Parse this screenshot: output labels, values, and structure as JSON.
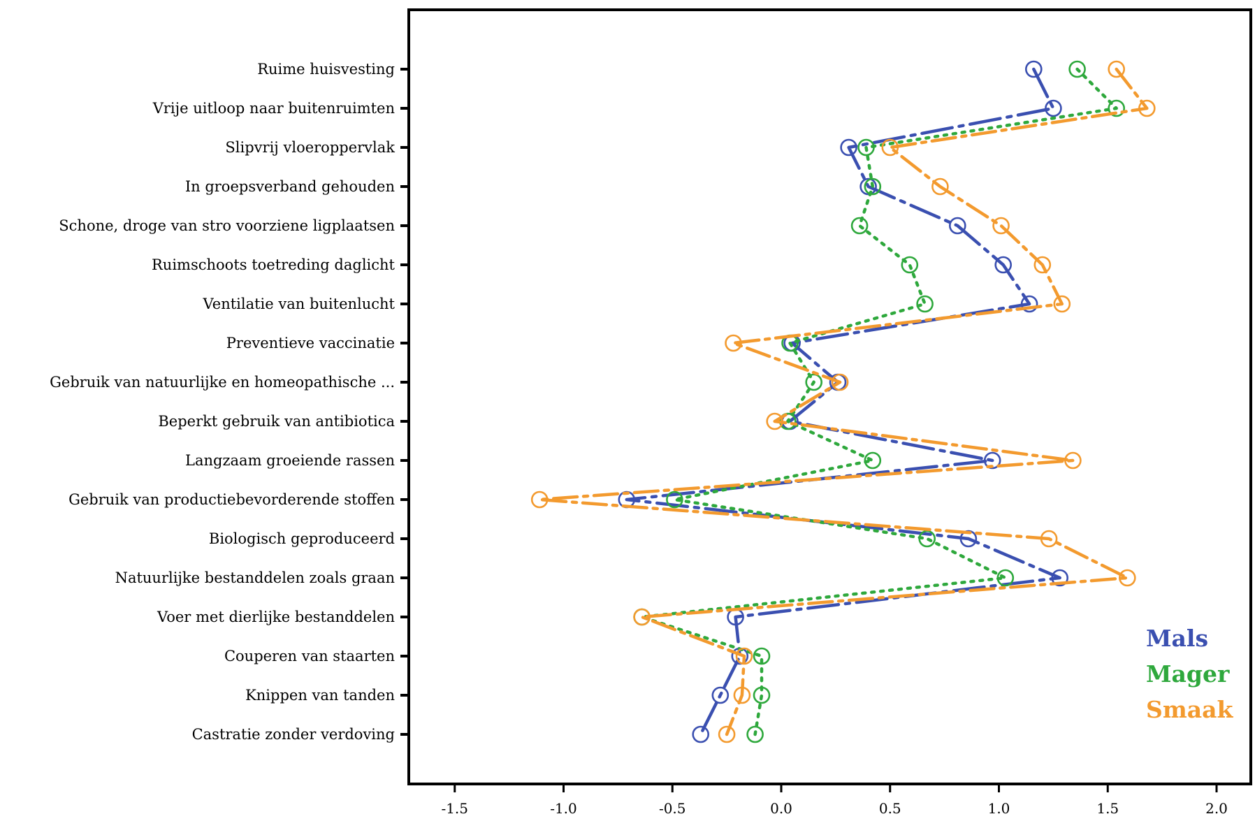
{
  "chart_data": {
    "type": "line",
    "orientation": "horizontal",
    "title": "",
    "xlabel": "",
    "ylabel": "",
    "xlim": [
      -1.7,
      2.15
    ],
    "xticks": [
      -1.5,
      -1.0,
      -0.5,
      0.0,
      0.5,
      1.0,
      1.5,
      2.0
    ],
    "xtick_labels": [
      "-1.5",
      "-1.0",
      "-0.5",
      "0.0",
      "0.5",
      "1.0",
      "1.5",
      "2.0"
    ],
    "grid": false,
    "legend_position": "bottom-right",
    "categories": [
      "Ruime huisvesting",
      "Vrije uitloop naar buitenruimten",
      "Slipvrij vloeroppervlak",
      "In groepsverband gehouden",
      "Schone, droge van stro voorziene ligplaatsen",
      "Ruimschoots toetreding daglicht",
      "Ventilatie van buitenlucht",
      "Preventieve vaccinatie",
      "Gebruik van natuurlijke en homeopathische ...",
      "Beperkt gebruik van antibiotica",
      "Langzaam groeiende rassen",
      "Gebruik van productiebevorderende stoffen",
      "Biologisch geproduceerd",
      "Natuurlijke bestanddelen zoals graan",
      "Voer met dierlijke bestanddelen",
      "Couperen van staarten",
      "Knippen van tanden",
      "Castratie zonder verdoving"
    ],
    "series": [
      {
        "name": "Mals",
        "color": "#3a4fb0",
        "values": [
          1.16,
          1.25,
          0.31,
          0.4,
          0.81,
          1.02,
          1.14,
          0.05,
          0.26,
          0.04,
          0.97,
          -0.71,
          0.86,
          1.28,
          -0.21,
          -0.19,
          -0.28,
          -0.37
        ]
      },
      {
        "name": "Mager",
        "color": "#2ea83c",
        "values": [
          1.36,
          1.54,
          0.39,
          0.42,
          0.36,
          0.59,
          0.66,
          0.04,
          0.15,
          0.03,
          0.42,
          -0.49,
          0.67,
          1.03,
          -0.64,
          -0.09,
          -0.09,
          -0.12
        ]
      },
      {
        "name": "Smaak",
        "color": "#f39a2e",
        "values": [
          1.54,
          1.68,
          0.5,
          0.73,
          1.01,
          1.2,
          1.29,
          -0.22,
          0.27,
          -0.03,
          1.34,
          -1.11,
          1.23,
          1.59,
          -0.64,
          -0.17,
          -0.18,
          -0.25
        ]
      }
    ]
  }
}
